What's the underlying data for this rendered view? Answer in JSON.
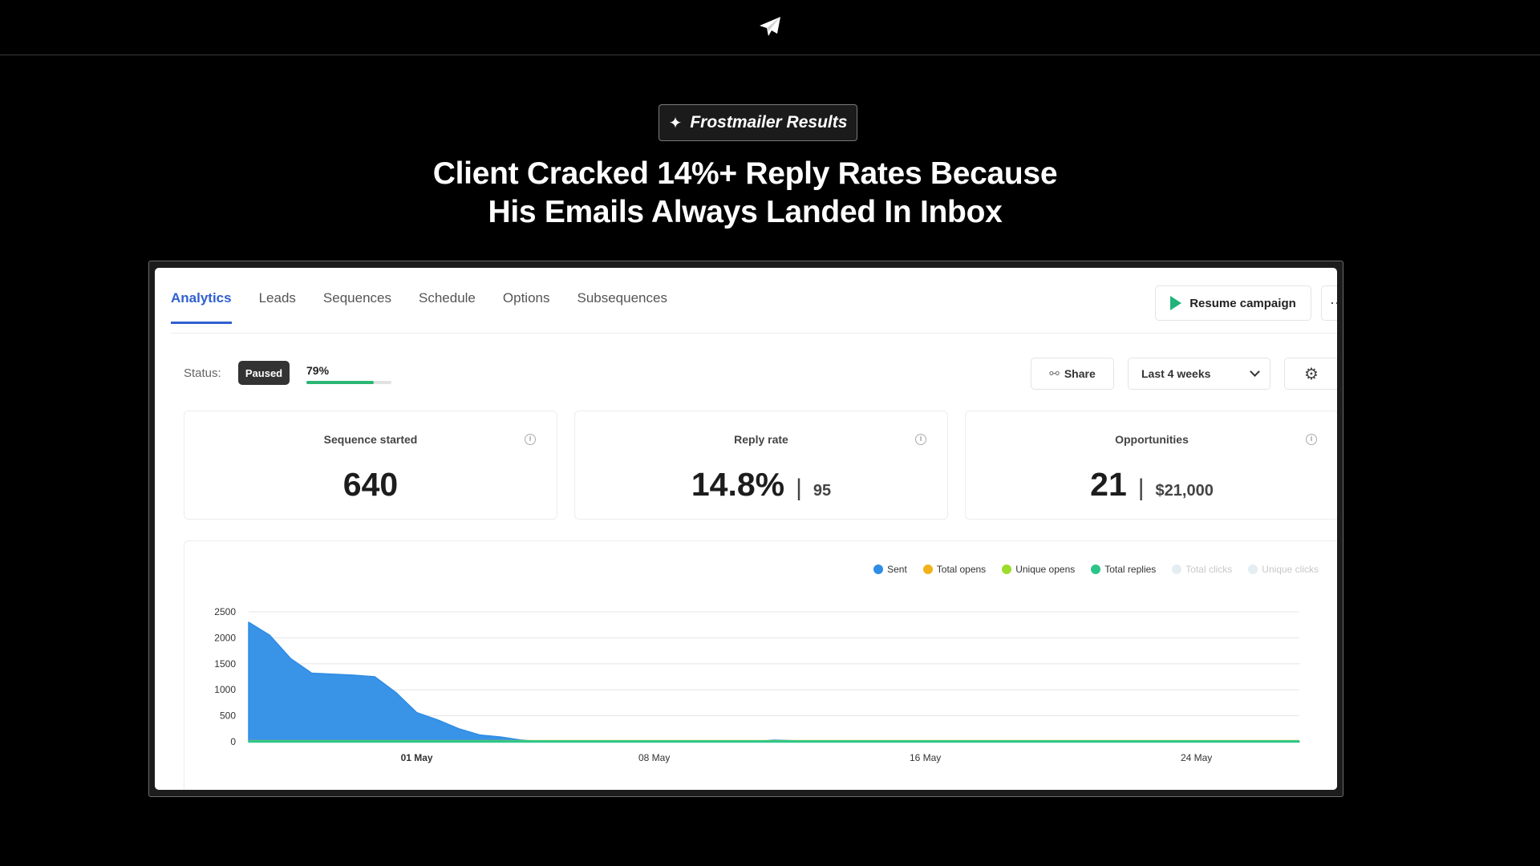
{
  "hero": {
    "badge_icon": "✦",
    "badge_text": "Frostmailer Results",
    "headline_line1": "Client Cracked 14%+ Reply Rates Because",
    "headline_line2": "His Emails Always Landed In Inbox"
  },
  "app": {
    "tabs": [
      {
        "label": "Analytics",
        "active": true
      },
      {
        "label": "Leads",
        "active": false
      },
      {
        "label": "Sequences",
        "active": false
      },
      {
        "label": "Schedule",
        "active": false
      },
      {
        "label": "Options",
        "active": false
      },
      {
        "label": "Subsequences",
        "active": false
      }
    ],
    "resume_label": "Resume campaign",
    "more_label": "··",
    "status_label": "Status:",
    "status_value": "Paused",
    "progress_text": "79%",
    "progress_value": 0.79,
    "share_label": "Share",
    "range_label": "Last 4 weeks",
    "cards": [
      {
        "title": "Sequence started",
        "value": "640",
        "sub": ""
      },
      {
        "title": "Reply rate",
        "value": "14.8%",
        "sub": "95"
      },
      {
        "title": "Opportunities",
        "value": "21",
        "sub": "$21,000"
      }
    ]
  },
  "colors": {
    "accent_blue": "#2f5fd0",
    "progress_green": "#2bb673",
    "play_green": "#22b37a",
    "sent": "#2e8de6",
    "total_opens": "#f2b21b",
    "unique_opens": "#9ddc2a",
    "total_replies": "#2bc58a",
    "total_clicks": "#e4edf2",
    "unique_clicks": "#e4edf2"
  },
  "chart_data": {
    "type": "area",
    "series": [
      {
        "name": "Sent",
        "color": "#2e8de6",
        "faded": false,
        "points": [
          [
            0,
            2300
          ],
          [
            1,
            2050
          ],
          [
            2,
            1600
          ],
          [
            3,
            1320
          ],
          [
            4,
            1300
          ],
          [
            5,
            1280
          ],
          [
            6,
            1250
          ],
          [
            7,
            950
          ],
          [
            8,
            560
          ],
          [
            9,
            420
          ],
          [
            10,
            250
          ],
          [
            11,
            130
          ],
          [
            12,
            90
          ],
          [
            13,
            30
          ],
          [
            14,
            0
          ],
          [
            15,
            0
          ],
          [
            16,
            0
          ],
          [
            17,
            0
          ],
          [
            18,
            0
          ],
          [
            19,
            0
          ],
          [
            20,
            0
          ],
          [
            21,
            0
          ],
          [
            22,
            0
          ],
          [
            23,
            0
          ],
          [
            24,
            0
          ],
          [
            25,
            30
          ],
          [
            26,
            20
          ],
          [
            27,
            0
          ],
          [
            28,
            0
          ],
          [
            29,
            0
          ],
          [
            30,
            0
          ],
          [
            31,
            0
          ],
          [
            32,
            0
          ],
          [
            33,
            0
          ],
          [
            34,
            0
          ],
          [
            35,
            0
          ],
          [
            36,
            0
          ],
          [
            37,
            0
          ],
          [
            38,
            0
          ],
          [
            39,
            0
          ],
          [
            40,
            0
          ],
          [
            41,
            0
          ],
          [
            42,
            0
          ],
          [
            43,
            0
          ],
          [
            44,
            0
          ],
          [
            45,
            0
          ],
          [
            46,
            0
          ],
          [
            47,
            0
          ],
          [
            48,
            0
          ],
          [
            49,
            0
          ],
          [
            50,
            0
          ]
        ]
      },
      {
        "name": "Total opens",
        "color": "#f2b21b",
        "faded": false,
        "points": [
          [
            0,
            10
          ],
          [
            50,
            10
          ]
        ]
      },
      {
        "name": "Unique opens",
        "color": "#9ddc2a",
        "faded": false,
        "points": [
          [
            0,
            8
          ],
          [
            50,
            8
          ]
        ]
      },
      {
        "name": "Total replies",
        "color": "#2bc58a",
        "faded": false,
        "points": [
          [
            0,
            4
          ],
          [
            50,
            4
          ]
        ]
      },
      {
        "name": "Total clicks",
        "color": "#e4edf2",
        "faded": true,
        "points": []
      },
      {
        "name": "Unique clicks",
        "color": "#e4edf2",
        "faded": true,
        "points": []
      }
    ],
    "y_ticks": [
      0,
      500,
      1000,
      1500,
      2000,
      2500
    ],
    "ylim": [
      0,
      2500
    ],
    "xlim": [
      0,
      50
    ],
    "x_ticks": [
      {
        "label": "01 May",
        "x": 8
      },
      {
        "label": "08 May",
        "x": 19.3
      },
      {
        "label": "16 May",
        "x": 32.2
      },
      {
        "label": "24 May",
        "x": 45.1
      }
    ],
    "grid": true,
    "legend_position": "top-right"
  }
}
